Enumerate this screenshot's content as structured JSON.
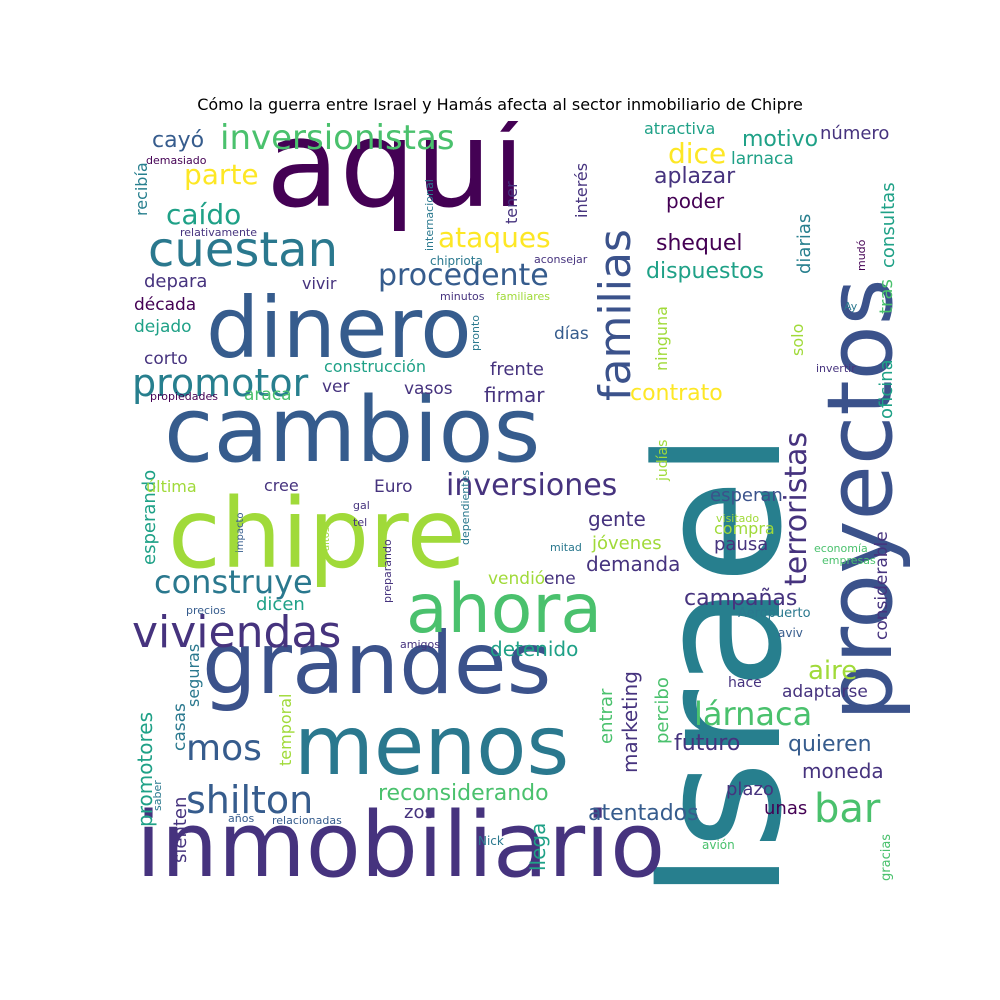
{
  "title": "Cómo la guerra entre Israel y Hamás afecta al sector inmobiliario de Chipre",
  "words": [
    {
      "text": "Israel"
    },
    {
      "text": "aquí"
    },
    {
      "text": "proyectos"
    },
    {
      "text": "inmobiliario"
    },
    {
      "text": "cambios"
    },
    {
      "text": "chipre"
    },
    {
      "text": "grandes"
    },
    {
      "text": "dinero"
    },
    {
      "text": "menos"
    },
    {
      "text": "ahora"
    },
    {
      "text": "cuestan"
    },
    {
      "text": "familias"
    },
    {
      "text": "viviendas"
    },
    {
      "text": "terroristas"
    },
    {
      "text": "inversionistas"
    },
    {
      "text": "promotor"
    },
    {
      "text": "construye"
    },
    {
      "text": "shilton"
    },
    {
      "text": "procedente"
    },
    {
      "text": "inversiones"
    },
    {
      "text": "lárnaca"
    },
    {
      "text": "bar"
    },
    {
      "text": "mos"
    },
    {
      "text": "aire"
    },
    {
      "text": "caído"
    },
    {
      "text": "parte"
    },
    {
      "text": "ataques"
    },
    {
      "text": "dice"
    },
    {
      "text": "shequel"
    },
    {
      "text": "aplazar"
    },
    {
      "text": "motivo"
    },
    {
      "text": "cayó"
    },
    {
      "text": "atractiva"
    },
    {
      "text": "número"
    },
    {
      "text": "consultas"
    },
    {
      "text": "oficina"
    },
    {
      "text": "tras"
    },
    {
      "text": "diarias"
    },
    {
      "text": "larnaca"
    },
    {
      "text": "poder"
    },
    {
      "text": "dispuestos"
    },
    {
      "text": "contrato"
    },
    {
      "text": "reconsiderando"
    },
    {
      "text": "atentados"
    },
    {
      "text": "futuro"
    },
    {
      "text": "quieren"
    },
    {
      "text": "moneda"
    },
    {
      "text": "detenido"
    },
    {
      "text": "campañas"
    },
    {
      "text": "demanda"
    },
    {
      "text": "gente"
    },
    {
      "text": "esperan"
    },
    {
      "text": "pausa"
    },
    {
      "text": "compra"
    },
    {
      "text": "jóvenes"
    },
    {
      "text": "considerable"
    },
    {
      "text": "marketing"
    },
    {
      "text": "percibo"
    },
    {
      "text": "entrar"
    },
    {
      "text": "plazo"
    },
    {
      "text": "unas"
    },
    {
      "text": "llega"
    },
    {
      "text": "zos"
    },
    {
      "text": "promotores"
    },
    {
      "text": "esperando"
    },
    {
      "text": "sienten"
    },
    {
      "text": "casas"
    },
    {
      "text": "seguras"
    },
    {
      "text": "temporal"
    },
    {
      "text": "dicen"
    },
    {
      "text": "recibía"
    },
    {
      "text": "depara"
    },
    {
      "text": "década"
    },
    {
      "text": "dejado"
    },
    {
      "text": "corto"
    },
    {
      "text": "vivir"
    },
    {
      "text": "construcción"
    },
    {
      "text": "ver"
    },
    {
      "text": "vasos"
    },
    {
      "text": "frente"
    },
    {
      "text": "firmar"
    },
    {
      "text": "días"
    },
    {
      "text": "última"
    },
    {
      "text": "cree"
    },
    {
      "text": "Euro"
    },
    {
      "text": "vendió"
    },
    {
      "text": "ene"
    },
    {
      "text": "tener"
    },
    {
      "text": "interés"
    },
    {
      "text": "ninguna"
    },
    {
      "text": "solo"
    },
    {
      "text": "judías"
    },
    {
      "text": "araca"
    },
    {
      "text": "adaptarse"
    },
    {
      "text": "hace"
    },
    {
      "text": "aviv"
    },
    {
      "text": "Aeropuerto"
    },
    {
      "text": "economía"
    },
    {
      "text": "empresas"
    },
    {
      "text": "gracias"
    },
    {
      "text": "avión"
    },
    {
      "text": "Nick"
    },
    {
      "text": "relacionadas"
    },
    {
      "text": "años"
    },
    {
      "text": "saber"
    },
    {
      "text": "demasiado"
    },
    {
      "text": "relativamente"
    },
    {
      "text": "internacional"
    },
    {
      "text": "chipriota"
    },
    {
      "text": "aconsejar"
    },
    {
      "text": "minutos"
    },
    {
      "text": "familiares"
    },
    {
      "text": "pronto"
    },
    {
      "text": "propiedades"
    },
    {
      "text": "mudó"
    },
    {
      "text": "Ay"
    },
    {
      "text": "invertir"
    },
    {
      "text": "visitado"
    },
    {
      "text": "mitad"
    },
    {
      "text": "dependientes"
    },
    {
      "text": "preparando"
    },
    {
      "text": "gal"
    },
    {
      "text": "tel"
    },
    {
      "text": "impacto"
    },
    {
      "text": "altos"
    },
    {
      "text": "precios"
    },
    {
      "text": "amigos"
    }
  ]
}
